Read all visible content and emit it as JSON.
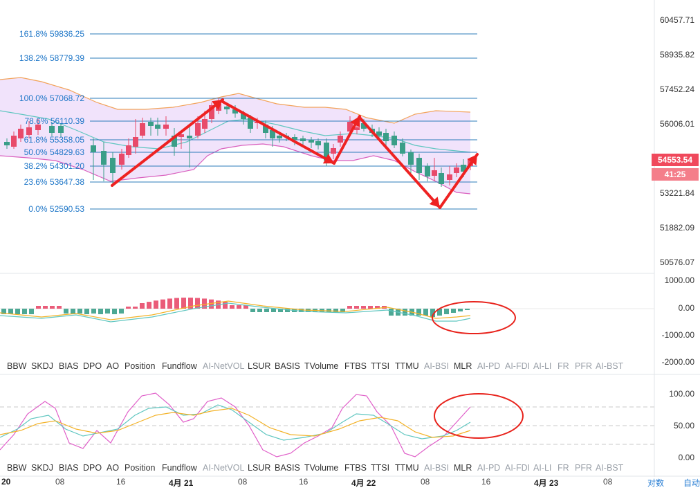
{
  "price_axis": [
    "60457.71",
    "58935.82",
    "57452.24",
    "56006.01",
    "53221.84",
    "51882.09",
    "50576.07"
  ],
  "price_tag": {
    "value": "54553.54",
    "countdown": "41:25",
    "color": "#f0495c",
    "color2": "#f47e8a"
  },
  "macd_axis": [
    "1000.00",
    "0.00",
    "-1000.00",
    "-2000.00"
  ],
  "kdj_axis": [
    "100.00",
    "50.00",
    "0.00"
  ],
  "fib_levels": [
    {
      "label": "161.8% 59836.25"
    },
    {
      "label": "138.2% 58779.39"
    },
    {
      "label": "100.0% 57068.72"
    },
    {
      "label": "78.6% 56110.39"
    },
    {
      "label": "61.8% 55358.05"
    },
    {
      "label": "50.0% 54829.63"
    },
    {
      "label": "38.2% 54301.20"
    },
    {
      "label": "23.6% 53647.38"
    },
    {
      "label": "0.0% 52590.53"
    }
  ],
  "indicators": [
    {
      "label": "BBW",
      "dim": false
    },
    {
      "label": "SKDJ",
      "dim": false
    },
    {
      "label": "BIAS",
      "dim": false
    },
    {
      "label": "DPO",
      "dim": false
    },
    {
      "label": "AO",
      "dim": false
    },
    {
      "label": "Position",
      "dim": false
    },
    {
      "label": "Fundflow",
      "dim": false
    },
    {
      "label": "AI-NetVOL",
      "dim": true
    },
    {
      "label": "LSUR",
      "dim": false
    },
    {
      "label": "BASIS",
      "dim": false
    },
    {
      "label": "TVolume",
      "dim": false
    },
    {
      "label": "FTBS",
      "dim": false
    },
    {
      "label": "TTSI",
      "dim": false
    },
    {
      "label": "TTMU",
      "dim": false
    },
    {
      "label": "AI-BSI",
      "dim": true
    },
    {
      "label": "MLR",
      "dim": false
    },
    {
      "label": "AI-PD",
      "dim": true
    },
    {
      "label": "AI-FDI",
      "dim": true
    },
    {
      "label": "AI-LI",
      "dim": true
    },
    {
      "label": "FR",
      "dim": true
    },
    {
      "label": "PFR",
      "dim": true
    },
    {
      "label": "AI-BST",
      "dim": true
    }
  ],
  "time_axis": [
    {
      "label": "20",
      "bold": true
    },
    {
      "label": "08",
      "bold": false
    },
    {
      "label": "16",
      "bold": false
    },
    {
      "label": "4月 21",
      "bold": true
    },
    {
      "label": "08",
      "bold": false
    },
    {
      "label": "16",
      "bold": false
    },
    {
      "label": "4月 22",
      "bold": true
    },
    {
      "label": "08",
      "bold": false
    },
    {
      "label": "16",
      "bold": false
    },
    {
      "label": "4月 23",
      "bold": true
    },
    {
      "label": "08",
      "bold": false
    }
  ],
  "modes": {
    "log": "对数",
    "auto": "自动"
  },
  "colors": {
    "up": "#e84a6a",
    "down": "#3a9e88",
    "fib_line": "#2b7bb9",
    "band_fill": "#efe0fb",
    "band_upper": "#f2a35a",
    "band_lower": "#d95fbe",
    "middle": "#5fc6c0",
    "arrow": "#ee2222",
    "circle": "#e8231c",
    "kdj_k": "#5fc6c0",
    "kdj_d": "#f3b227",
    "kdj_j": "#e05fc9"
  }
}
